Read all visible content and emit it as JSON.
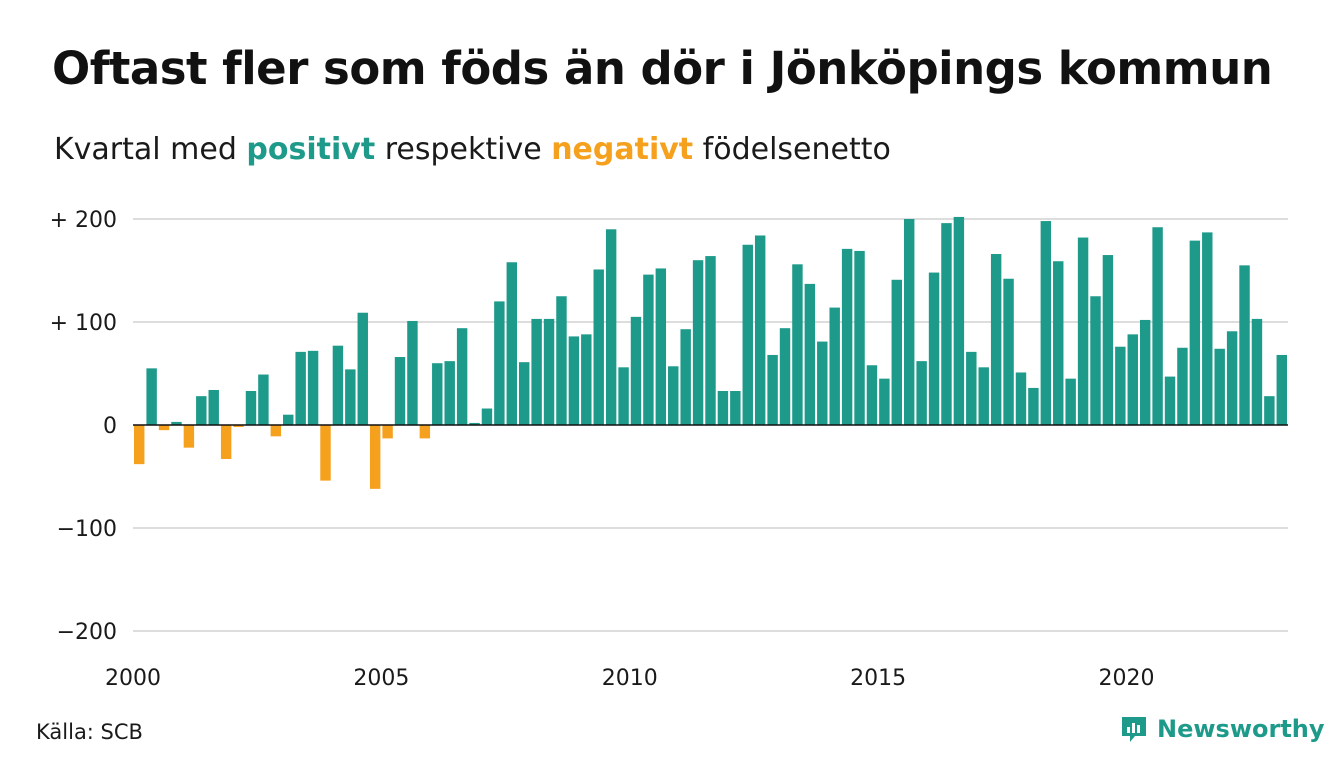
{
  "title": "Oftast fler som föds än dör i Jönköpings kommun",
  "subtitle": {
    "prefix": "Kvartal med ",
    "positive": "positivt",
    "middle": " respektive ",
    "negative": "negativt",
    "suffix": " födelsenetto"
  },
  "source": "Källa: SCB",
  "brand": "Newsworthy",
  "colors": {
    "positive": "#1d9a8a",
    "negative": "#f5a11e",
    "grid": "#dddddd",
    "axis": "#111111"
  },
  "chart_data": {
    "type": "bar",
    "x_start": 2000,
    "x_unit": "quarter",
    "ylim": [
      -200,
      210
    ],
    "yticks": [
      {
        "value": 200,
        "label": "+ 200"
      },
      {
        "value": 100,
        "label": "+ 100"
      },
      {
        "value": 0,
        "label": "0"
      },
      {
        "value": -100,
        "label": "−100"
      },
      {
        "value": -200,
        "label": "−200"
      }
    ],
    "xticks": [
      {
        "value": 2000,
        "label": "2000"
      },
      {
        "value": 2005,
        "label": "2005"
      },
      {
        "value": 2010,
        "label": "2010"
      },
      {
        "value": 2015,
        "label": "2015"
      },
      {
        "value": 2020,
        "label": "2020"
      }
    ],
    "grid": true,
    "values": [
      -38,
      55,
      -5,
      3,
      -22,
      28,
      34,
      -33,
      -2,
      33,
      49,
      -11,
      10,
      71,
      72,
      -54,
      77,
      54,
      109,
      -62,
      -13,
      66,
      101,
      -13,
      60,
      62,
      94,
      2,
      16,
      120,
      158,
      61,
      103,
      103,
      125,
      86,
      88,
      151,
      190,
      56,
      105,
      146,
      152,
      57,
      93,
      160,
      164,
      33,
      33,
      175,
      184,
      68,
      94,
      156,
      137,
      81,
      114,
      171,
      169,
      58,
      45,
      141,
      200,
      62,
      148,
      196,
      202,
      71,
      56,
      166,
      142,
      51,
      36,
      198,
      159,
      45,
      182,
      125,
      165,
      76,
      88,
      102,
      192,
      47,
      75,
      179,
      187,
      74,
      91,
      155,
      103,
      28,
      68
    ]
  }
}
